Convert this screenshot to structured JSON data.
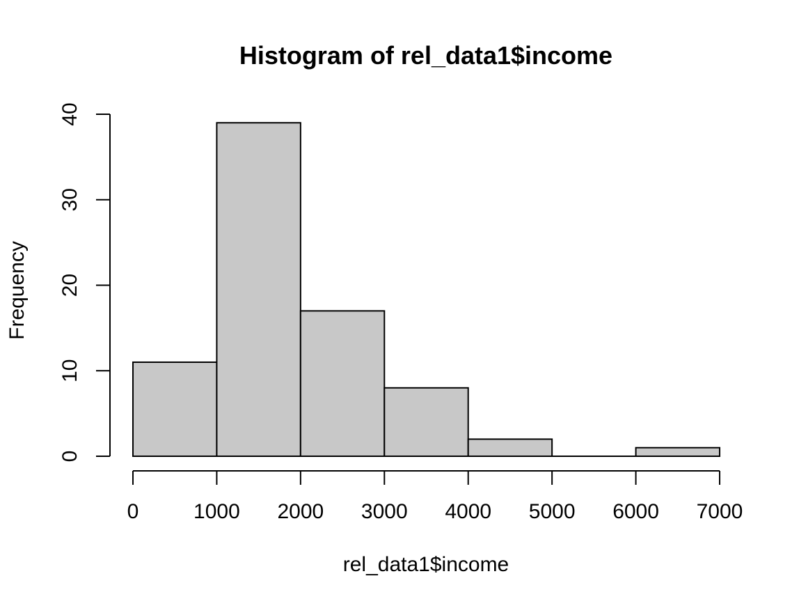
{
  "chart_data": {
    "type": "bar",
    "title": "Histogram of rel_data1$income",
    "xlabel": "rel_data1$income",
    "ylabel": "Frequency",
    "bins": [
      {
        "start": 0,
        "end": 1000,
        "count": 11
      },
      {
        "start": 1000,
        "end": 2000,
        "count": 39
      },
      {
        "start": 2000,
        "end": 3000,
        "count": 17
      },
      {
        "start": 3000,
        "end": 4000,
        "count": 8
      },
      {
        "start": 4000,
        "end": 5000,
        "count": 2
      },
      {
        "start": 5000,
        "end": 6000,
        "count": 0
      },
      {
        "start": 6000,
        "end": 7000,
        "count": 1
      }
    ],
    "xlim": [
      0,
      7000
    ],
    "ylim": [
      0,
      40
    ],
    "x_ticks": [
      "0",
      "1000",
      "2000",
      "3000",
      "4000",
      "5000",
      "6000",
      "7000"
    ],
    "y_ticks": [
      "0",
      "10",
      "20",
      "30",
      "40"
    ],
    "bar_color": "#c8c8c8",
    "border_color": "#000000",
    "grid": false,
    "legend": "none"
  }
}
